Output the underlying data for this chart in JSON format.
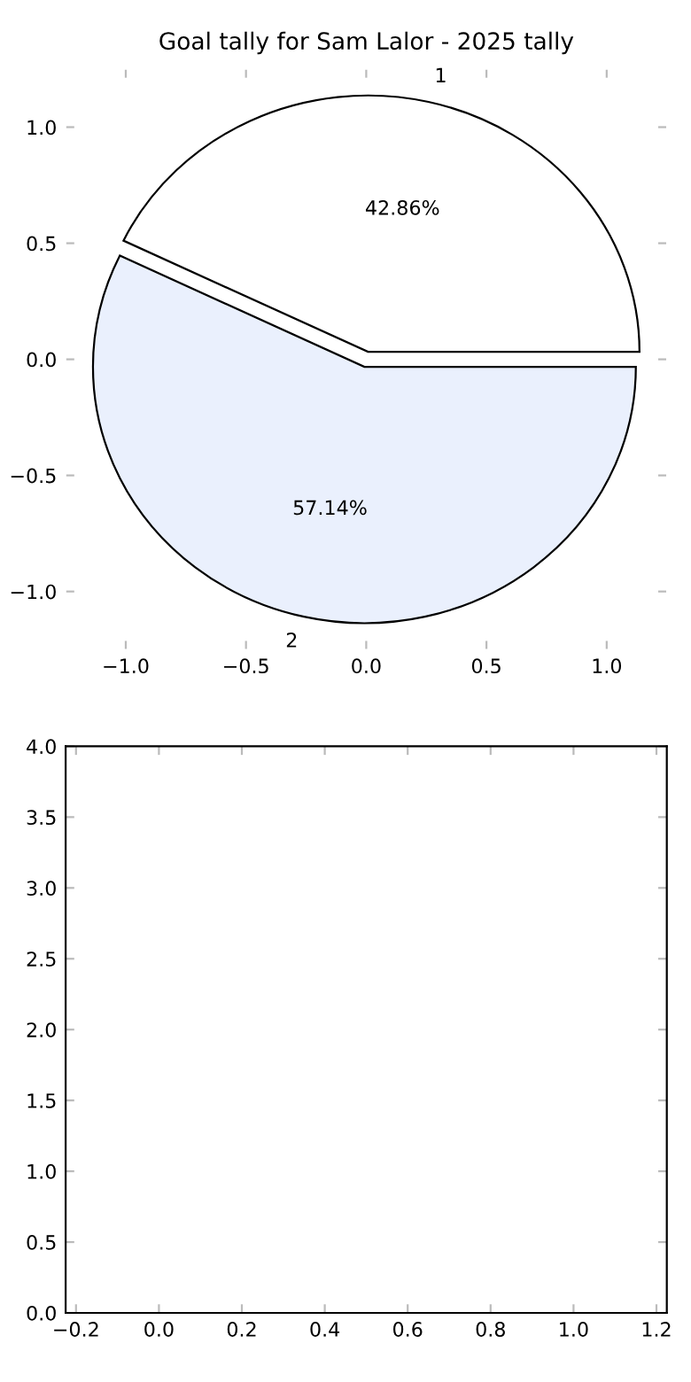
{
  "chart_data": [
    {
      "type": "pie",
      "title": "Goal tally for Sam Lalor - 2025 tally",
      "categories": [
        "1",
        "2"
      ],
      "values": [
        42.86,
        57.14
      ],
      "value_labels": [
        "42.86%",
        "57.14%"
      ],
      "colors": [
        "#ffffff",
        "#eaf0fd"
      ]
    },
    {
      "type": "scatter",
      "xlim": [
        -1.25,
        1.25
      ],
      "ylim": [
        -1.25,
        1.25
      ],
      "xticks": [
        {
          "value": -1.0,
          "label": "−1.0"
        },
        {
          "value": -0.5,
          "label": "−0.5"
        },
        {
          "value": 0.0,
          "label": "0.0"
        },
        {
          "value": 0.5,
          "label": "0.5"
        },
        {
          "value": 1.0,
          "label": "1.0"
        }
      ],
      "yticks": [
        {
          "value": -1.0,
          "label": "−1.0"
        },
        {
          "value": -0.5,
          "label": "−0.5"
        },
        {
          "value": 0.0,
          "label": "0.0"
        },
        {
          "value": 0.5,
          "label": "0.5"
        },
        {
          "value": 1.0,
          "label": "1.0"
        }
      ]
    },
    {
      "type": "scatter",
      "xlim": [
        -0.225,
        1.225
      ],
      "ylim": [
        0,
        4
      ],
      "xticks": [
        {
          "value": -0.2,
          "label": "−0.2"
        },
        {
          "value": 0.0,
          "label": "0.0"
        },
        0.2,
        0.4,
        0.6,
        0.8,
        {
          "value": 1.0,
          "label": "1.0"
        },
        1.2
      ],
      "yticks": [
        {
          "value": 0,
          "label": "0.0"
        },
        0.5,
        {
          "value": 1,
          "label": "1.0"
        },
        1.5,
        {
          "value": 2,
          "label": "2.0"
        },
        2.5,
        {
          "value": 3,
          "label": "3.0"
        },
        3.5,
        {
          "value": 4,
          "label": "4.0"
        }
      ]
    }
  ]
}
